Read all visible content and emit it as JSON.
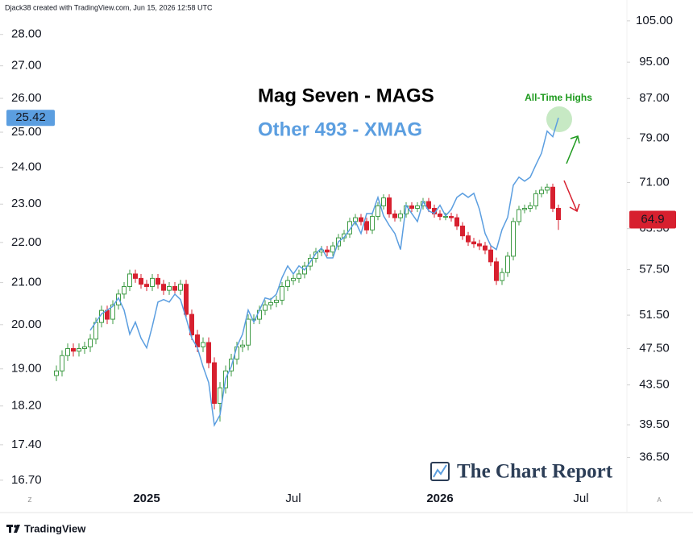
{
  "chart_data": {
    "type": "candlestick",
    "header": "Djack38 created with TradingView.com, Jun 15, 2026 12:58 UTC",
    "annotation": "All-Time Highs",
    "watermark": "The Chart Report",
    "branding": "TradingView",
    "corner_buttons": [
      "Z",
      "A"
    ],
    "log_scale": true,
    "categories": [
      null,
      null,
      null,
      null,
      null,
      null,
      null,
      null,
      null,
      null,
      null,
      null,
      null,
      null,
      null,
      null,
      "2025",
      null,
      null,
      null,
      null,
      null,
      null,
      null,
      null,
      null,
      null,
      null,
      null,
      null,
      null,
      null,
      null,
      null,
      null,
      null,
      null,
      null,
      null,
      null,
      null,
      null,
      "Jul",
      null,
      null,
      null,
      null,
      null,
      null,
      null,
      null,
      null,
      null,
      null,
      null,
      null,
      null,
      null,
      null,
      null,
      null,
      null,
      null,
      null,
      null,
      null,
      null,
      null,
      "2026",
      null,
      null,
      null,
      null,
      null,
      null,
      null,
      null,
      null,
      null,
      null,
      null,
      null,
      null,
      null,
      null,
      null,
      null,
      null,
      null,
      null,
      null,
      null,
      null,
      "Jul",
      null,
      null,
      null,
      null,
      null,
      null
    ],
    "ylim": [
      16.48,
      28.87
    ],
    "yticks": [
      {
        "value": 28,
        "label": "28.00"
      },
      {
        "value": 27,
        "label": "27.00"
      },
      {
        "value": 26,
        "label": "26.00"
      },
      {
        "value": 25,
        "label": "25.00"
      },
      {
        "value": 24,
        "label": "24.00"
      },
      {
        "value": 23,
        "label": "23.00"
      },
      {
        "value": 22,
        "label": "22.00"
      },
      {
        "value": 21,
        "label": "21.00"
      },
      {
        "value": 20,
        "label": "20.00"
      },
      {
        "value": 19,
        "label": "19.00"
      },
      {
        "value": 18.2,
        "label": "18.20"
      },
      {
        "value": 17.4,
        "label": "17.40"
      },
      {
        "value": 16.7,
        "label": "16.70"
      }
    ],
    "y2lim": [
      33.6,
      108.3
    ],
    "y2ticks": [
      {
        "value": 105,
        "label": "105.00"
      },
      {
        "value": 95,
        "label": "95.00"
      },
      {
        "value": 87,
        "label": "87.00"
      },
      {
        "value": 79,
        "label": "79.00"
      },
      {
        "value": 71,
        "label": "71.00"
      },
      {
        "value": 63.5,
        "label": "63.50"
      },
      {
        "value": 57.5,
        "label": "57.50"
      },
      {
        "value": 51.5,
        "label": "51.50"
      },
      {
        "value": 47.5,
        "label": "47.50"
      },
      {
        "value": 43.5,
        "label": "43.50"
      },
      {
        "value": 39.5,
        "label": "39.50"
      },
      {
        "value": 36.5,
        "label": "36.50"
      }
    ],
    "series": [
      {
        "name": "Mag Seven - MAGS",
        "type": "candlestick",
        "axis": "y2",
        "up_color": "#3f9b45",
        "down_color": "#d7202f",
        "label_color": "#000000",
        "open": [
          44.5,
          45.0,
          46.7,
          47.5,
          47.2,
          47.5,
          47.7,
          48.6,
          50.6,
          52.1,
          51.0,
          52.8,
          54.2,
          55.2,
          56.9,
          56.3,
          55.5,
          55.2,
          56.3,
          55.5,
          54.7,
          55.2,
          54.7,
          55.5,
          51.6,
          49.1,
          47.7,
          48.2,
          45.9,
          41.6,
          43.2,
          45.0,
          46.3,
          47.7,
          47.9,
          51.0,
          51.0,
          52.1,
          52.8,
          53.1,
          53.4,
          55.2,
          56.0,
          56.3,
          56.9,
          58.0,
          59.1,
          60.0,
          60.3,
          60.0,
          60.9,
          62.1,
          62.7,
          64.6,
          65.2,
          64.6,
          63.3,
          65.4,
          67.1,
          68.4,
          65.8,
          65.2,
          65.8,
          67.1,
          66.7,
          67.1,
          67.8,
          66.7,
          65.8,
          65.4,
          65.4,
          65.2,
          63.9,
          62.4,
          61.5,
          61.2,
          60.9,
          60.3,
          58.6,
          56.0,
          57.1,
          59.4,
          64.6,
          66.5,
          66.7,
          67.1,
          69.1,
          69.7,
          70.2,
          66.7,
          null,
          null,
          null,
          null,
          null,
          null,
          null,
          null,
          null,
          null
        ],
        "high": [
          45.6,
          47.3,
          48.1,
          48.1,
          48.1,
          48.3,
          49.2,
          51.2,
          52.7,
          52.7,
          53.4,
          54.8,
          55.8,
          57.5,
          57.5,
          56.9,
          56.1,
          56.9,
          56.9,
          56.1,
          55.8,
          55.8,
          56.1,
          56.1,
          52.2,
          49.7,
          48.8,
          48.8,
          46.5,
          43.8,
          45.6,
          46.9,
          48.3,
          48.5,
          51.6,
          51.6,
          52.7,
          53.4,
          53.7,
          54.0,
          55.8,
          56.6,
          56.9,
          57.5,
          58.6,
          59.7,
          60.6,
          60.9,
          60.9,
          61.5,
          62.7,
          63.3,
          65.2,
          65.8,
          65.8,
          65.2,
          66.0,
          67.7,
          69.0,
          69.0,
          66.4,
          66.4,
          67.7,
          67.7,
          67.7,
          68.4,
          68.4,
          67.3,
          66.4,
          66.0,
          66.0,
          65.8,
          64.5,
          63.0,
          62.1,
          61.8,
          61.5,
          60.9,
          59.2,
          57.7,
          60.0,
          65.2,
          67.1,
          67.3,
          67.7,
          69.7,
          70.3,
          70.8,
          70.8,
          67.3,
          null,
          null,
          null,
          null,
          null,
          null,
          null,
          null,
          null,
          null
        ],
        "low": [
          43.9,
          44.4,
          46.1,
          46.6,
          46.6,
          46.9,
          47.1,
          48.0,
          50.0,
          50.4,
          50.4,
          52.2,
          53.6,
          54.6,
          55.7,
          54.9,
          54.6,
          54.6,
          54.9,
          54.1,
          54.1,
          54.1,
          54.1,
          51.0,
          48.5,
          47.1,
          47.1,
          45.3,
          41.0,
          39.8,
          42.6,
          44.4,
          45.7,
          47.1,
          47.3,
          50.4,
          50.4,
          51.5,
          52.2,
          52.5,
          52.8,
          54.6,
          55.4,
          55.7,
          56.3,
          57.4,
          58.5,
          59.4,
          59.4,
          59.4,
          60.3,
          61.5,
          62.1,
          64.0,
          64.0,
          62.7,
          62.7,
          64.8,
          66.5,
          65.2,
          64.6,
          64.6,
          65.2,
          66.1,
          66.1,
          66.5,
          66.1,
          65.2,
          64.8,
          64.8,
          64.6,
          63.3,
          61.8,
          60.9,
          60.6,
          60.3,
          59.7,
          58.0,
          55.4,
          55.4,
          56.5,
          58.8,
          64.0,
          65.9,
          66.1,
          66.5,
          68.5,
          69.1,
          66.1,
          63.3,
          null,
          null,
          null,
          null,
          null,
          null,
          null,
          null,
          null,
          null
        ],
        "close": [
          45.0,
          46.7,
          47.5,
          47.2,
          47.5,
          47.7,
          48.6,
          50.6,
          52.1,
          51.0,
          52.8,
          54.2,
          55.2,
          56.9,
          56.3,
          55.5,
          55.2,
          56.3,
          55.5,
          54.7,
          55.2,
          54.7,
          55.5,
          51.6,
          49.1,
          47.7,
          48.2,
          45.9,
          41.6,
          43.2,
          45.0,
          46.3,
          47.7,
          47.9,
          51.0,
          51.0,
          52.1,
          52.8,
          53.1,
          53.4,
          55.2,
          56.0,
          56.3,
          56.9,
          58.0,
          59.1,
          60.0,
          60.3,
          60.0,
          60.9,
          62.1,
          62.7,
          64.6,
          65.2,
          64.6,
          63.3,
          65.4,
          67.1,
          68.4,
          65.8,
          65.2,
          65.8,
          67.1,
          66.7,
          67.1,
          67.8,
          66.7,
          65.8,
          65.4,
          65.4,
          65.2,
          63.9,
          62.4,
          61.5,
          61.2,
          60.9,
          60.3,
          58.6,
          56.0,
          57.1,
          59.4,
          64.6,
          66.5,
          66.7,
          67.1,
          69.1,
          69.7,
          70.2,
          66.7,
          64.9,
          null,
          null,
          null,
          null,
          null,
          null,
          null,
          null,
          null,
          null
        ]
      },
      {
        "name": "Other 493 - XMAG",
        "type": "line",
        "axis": "y",
        "color": "#5b9ee0",
        "values": [
          null,
          null,
          null,
          null,
          null,
          null,
          19.87,
          20.06,
          20.25,
          20.34,
          20.43,
          20.63,
          20.34,
          19.78,
          20.06,
          19.69,
          19.47,
          19.96,
          20.53,
          20.59,
          20.53,
          20.72,
          20.59,
          20.15,
          19.69,
          19.47,
          19.05,
          18.7,
          17.8,
          18.01,
          18.79,
          19.05,
          19.5,
          19.78,
          20.34,
          20.06,
          20.34,
          20.63,
          20.59,
          20.72,
          21.12,
          21.41,
          21.21,
          21.41,
          21.31,
          21.51,
          21.72,
          21.86,
          21.61,
          21.61,
          22.02,
          22.13,
          22.33,
          22.54,
          22.23,
          22.75,
          22.75,
          23.18,
          22.69,
          22.44,
          22.23,
          21.82,
          22.97,
          22.75,
          22.54,
          23.07,
          22.82,
          22.75,
          22.97,
          22.69,
          22.86,
          23.18,
          23.29,
          23.18,
          23.29,
          22.86,
          22.23,
          21.92,
          21.82,
          22.33,
          22.65,
          23.51,
          23.73,
          23.62,
          23.73,
          24.07,
          24.4,
          25.03,
          24.87,
          25.42,
          null,
          null,
          null,
          null,
          null,
          null,
          null,
          null,
          null,
          null
        ]
      }
    ]
  }
}
